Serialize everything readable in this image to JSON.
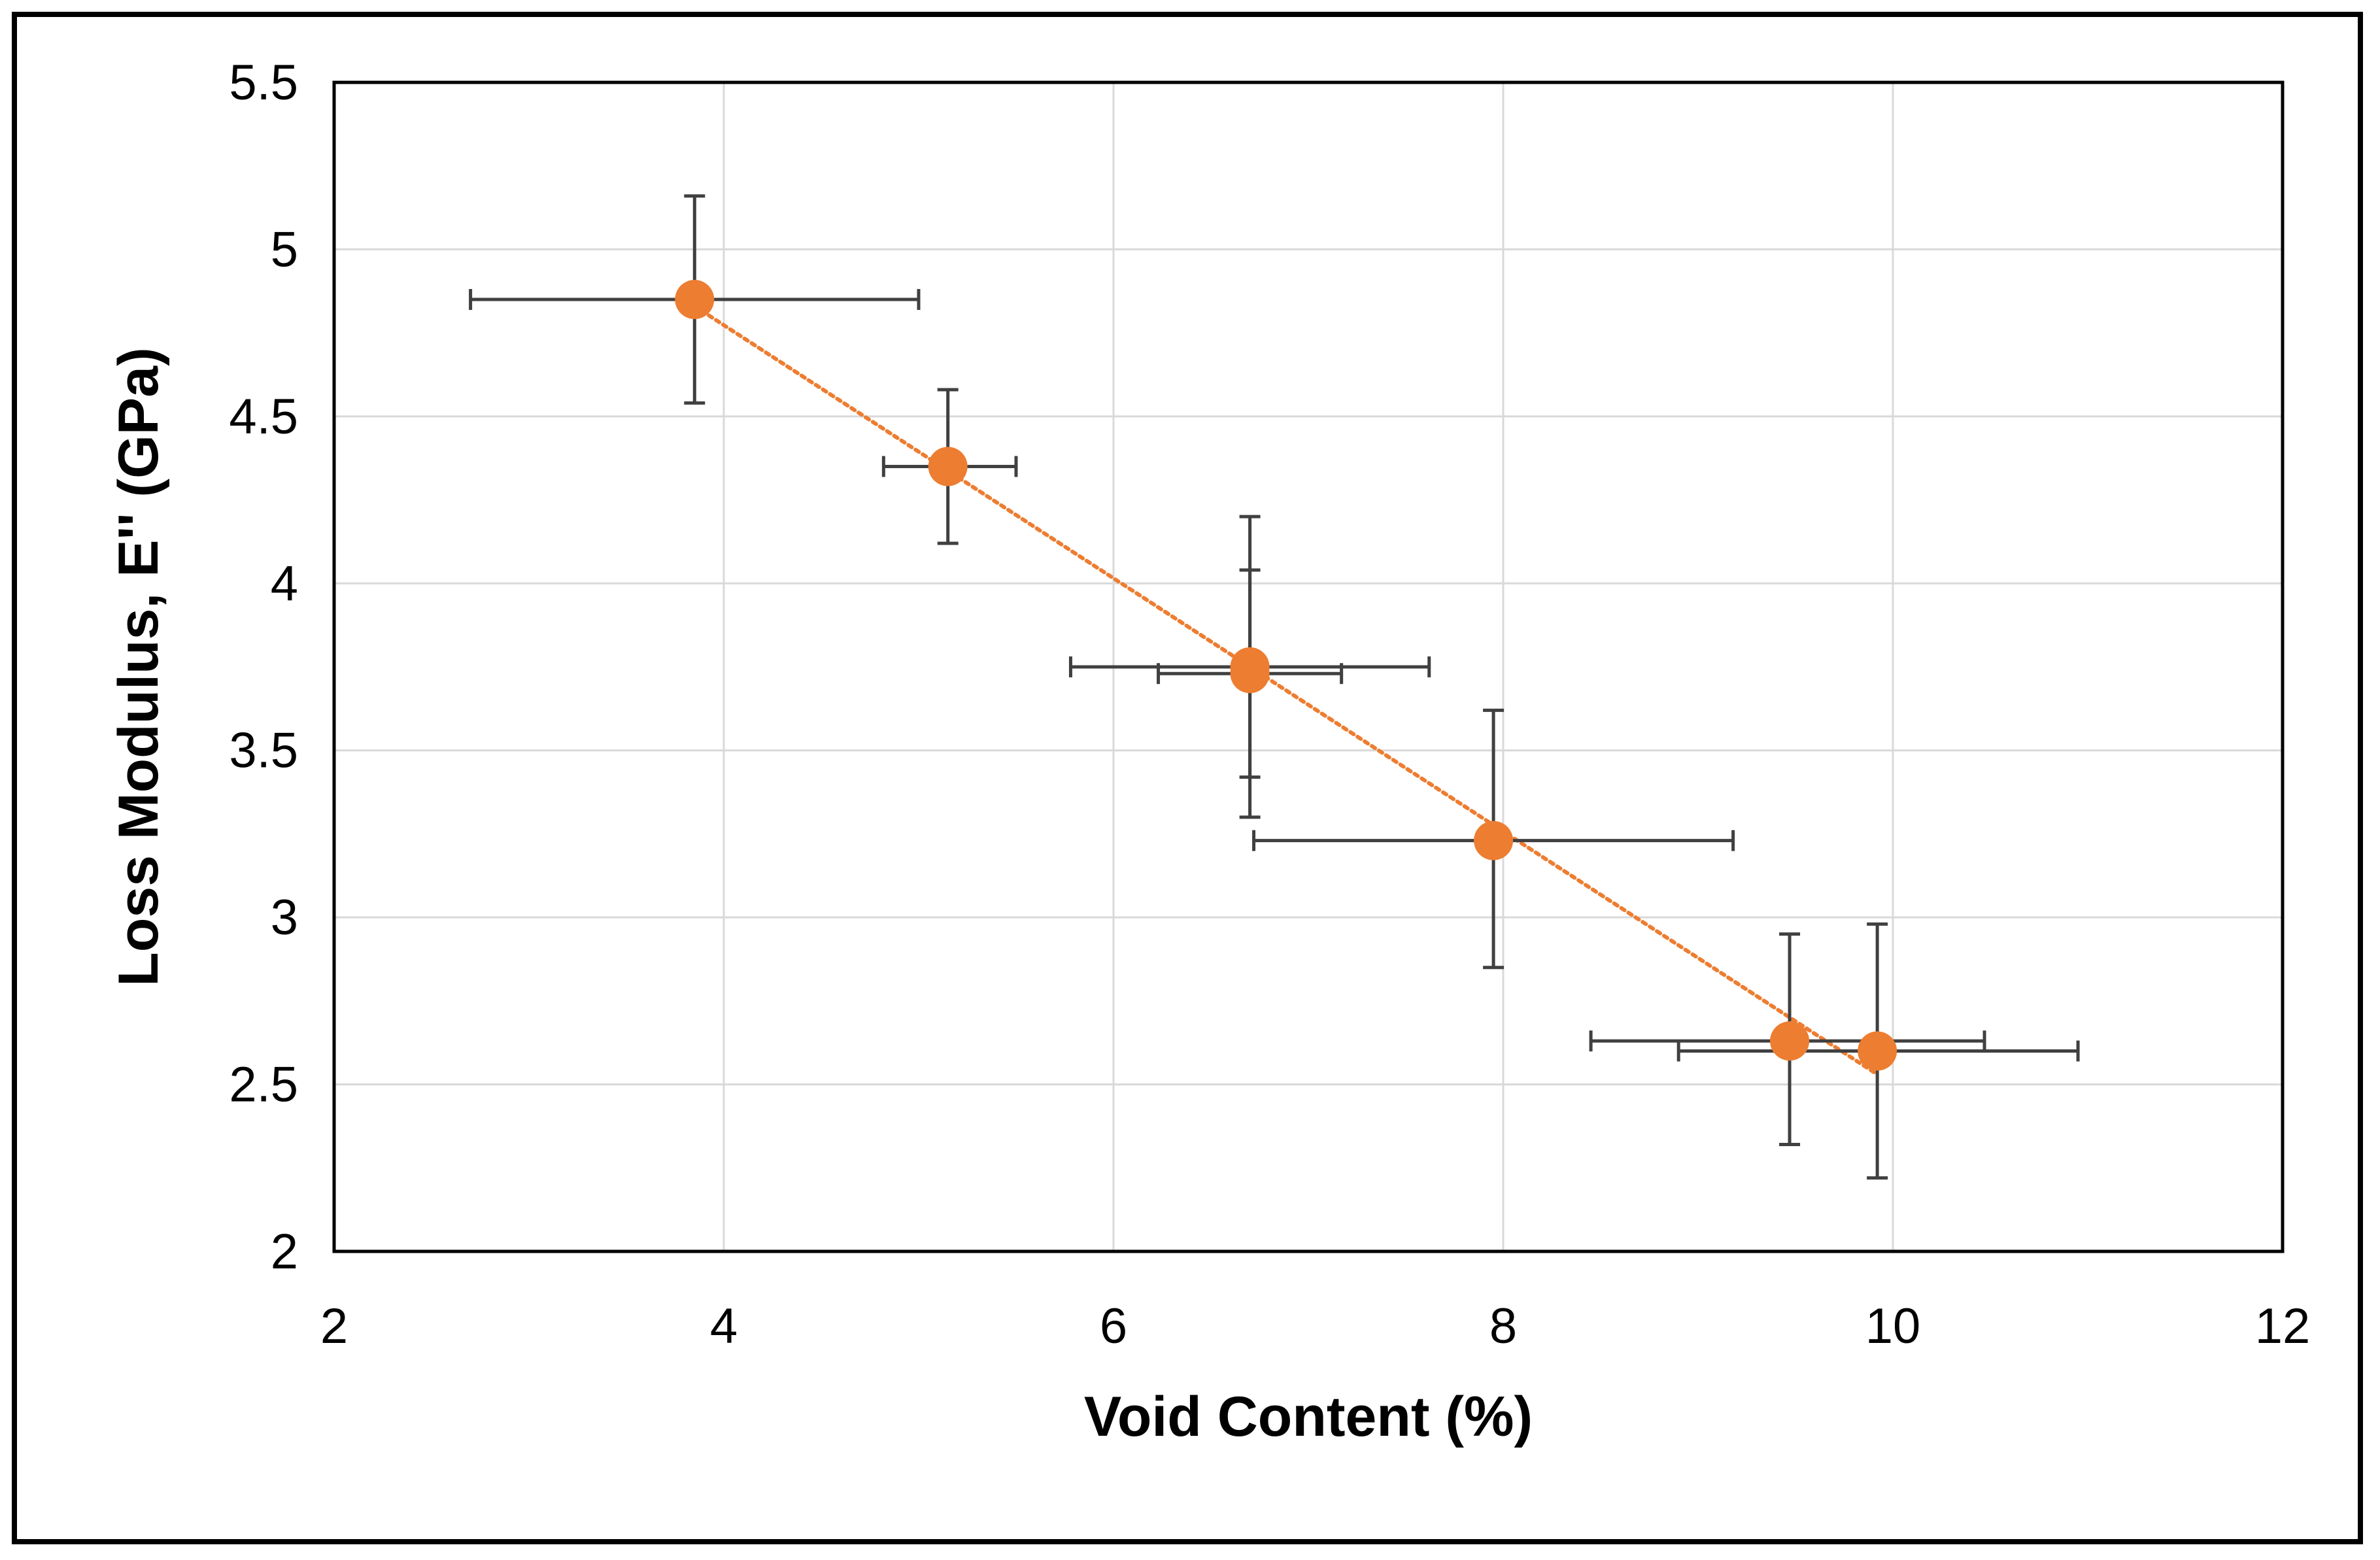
{
  "chart_data": {
    "type": "scatter",
    "title": "",
    "xlabel": "Void Content (%)",
    "ylabel": "Loss Modulus, E'' (GPa)",
    "xlim": [
      2,
      12
    ],
    "ylim": [
      2,
      5.5
    ],
    "xticks": [
      2,
      4,
      6,
      8,
      10,
      12
    ],
    "yticks": [
      2,
      2.5,
      3,
      3.5,
      4,
      4.5,
      5,
      5.5
    ],
    "xtick_labels": [
      "2",
      "4",
      "6",
      "8",
      "10",
      "12"
    ],
    "ytick_labels": [
      "2",
      "2.5",
      "3",
      "3.5",
      "4",
      "4.5",
      "5",
      "5.5"
    ],
    "grid": true,
    "legend": "none",
    "series": [
      {
        "name": "Loss Modulus",
        "color": "#ED7D31",
        "points": [
          {
            "x": 3.85,
            "y": 4.85,
            "xerr_low": 2.7,
            "xerr_high": 5.0,
            "yerr_low": 4.54,
            "yerr_high": 5.16
          },
          {
            "x": 5.15,
            "y": 4.35,
            "xerr_low": 4.82,
            "xerr_high": 5.5,
            "yerr_low": 4.12,
            "yerr_high": 4.58
          },
          {
            "x": 6.7,
            "y": 3.75,
            "xerr_low": 5.78,
            "xerr_high": 7.62,
            "yerr_low": 3.3,
            "yerr_high": 4.2
          },
          {
            "x": 6.7,
            "y": 3.73,
            "xerr_low": 6.23,
            "xerr_high": 7.17,
            "yerr_low": 3.42,
            "yerr_high": 4.04
          },
          {
            "x": 7.95,
            "y": 3.23,
            "xerr_low": 6.72,
            "xerr_high": 9.18,
            "yerr_low": 2.85,
            "yerr_high": 3.62
          },
          {
            "x": 9.47,
            "y": 2.63,
            "xerr_low": 8.45,
            "xerr_high": 10.47,
            "yerr_low": 2.32,
            "yerr_high": 2.95
          },
          {
            "x": 9.92,
            "y": 2.6,
            "xerr_low": 8.9,
            "xerr_high": 10.95,
            "yerr_low": 2.22,
            "yerr_high": 2.98
          }
        ]
      }
    ],
    "trendline": {
      "type": "linear",
      "style": "dotted",
      "color": "#ED7D31",
      "x_start": 3.85,
      "x_end": 9.92,
      "y_start": 4.83,
      "y_end": 2.53
    },
    "errorbar_color": "#404040"
  }
}
